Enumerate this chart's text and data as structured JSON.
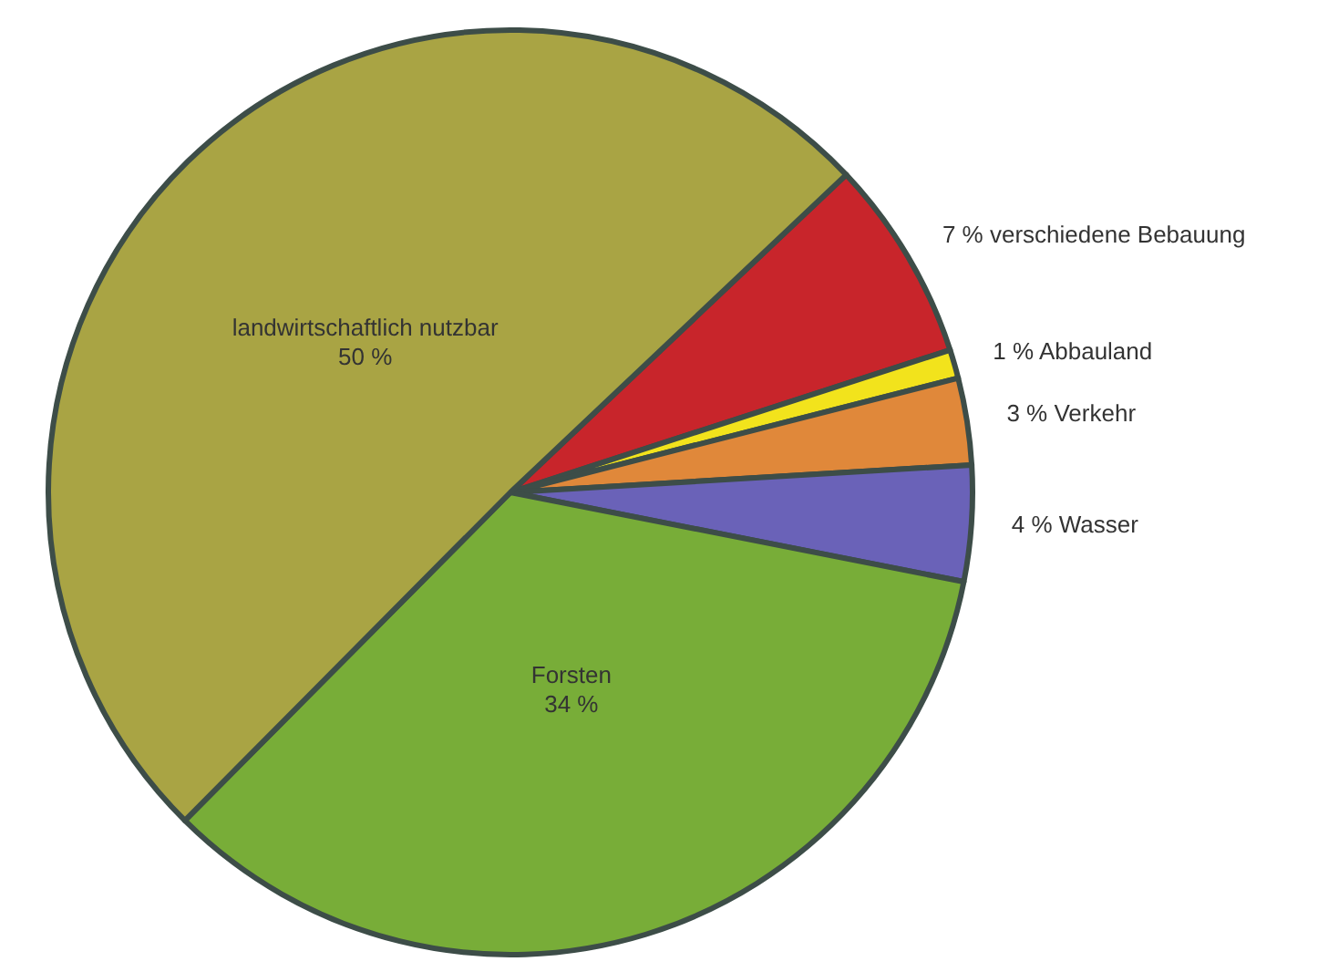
{
  "chart_data": {
    "type": "pie",
    "categories": [
      "verschiedene Bebauung",
      "Abbauland",
      "Verkehr",
      "Wasser",
      "Forsten",
      "landwirtschaftlich nutzbar"
    ],
    "values": [
      7,
      1,
      3,
      4,
      34,
      50
    ],
    "value_labels": [
      "7 %",
      "1 %",
      "3 %",
      "4 %",
      "34 %",
      "50 %"
    ],
    "colors": [
      "#c8252b",
      "#f2e31c",
      "#e0883a",
      "#6a62b8",
      "#78ad38",
      "#a9a444"
    ],
    "legend": false
  }
}
